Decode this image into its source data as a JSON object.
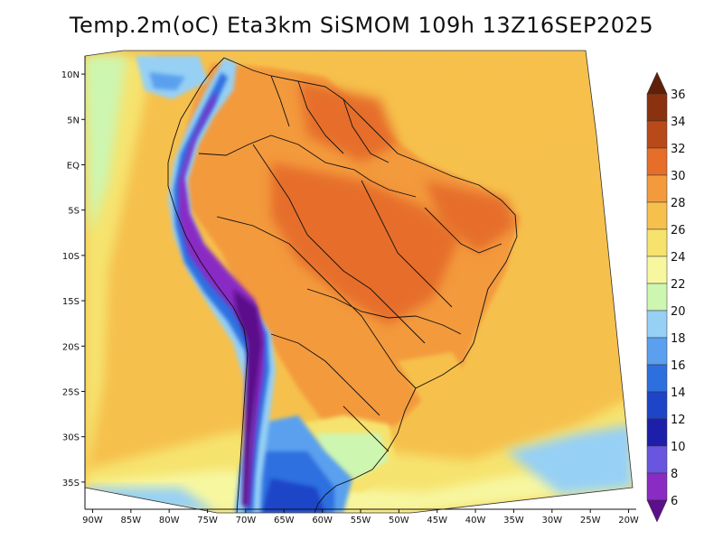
{
  "title": "Temp.2m(oC) Eta3km SiSMOM 109h 13Z16SEP2025",
  "map": {
    "lat_labels": [
      "10N",
      "5N",
      "EQ",
      "5S",
      "10S",
      "15S",
      "20S",
      "25S",
      "30S",
      "35S"
    ],
    "lon_labels": [
      "90W",
      "85W",
      "80W",
      "75W",
      "70W",
      "65W",
      "60W",
      "55W",
      "50W",
      "45W",
      "40W",
      "35W",
      "30W",
      "25W",
      "20W"
    ],
    "lat_values": [
      10,
      5,
      0,
      -5,
      -10,
      -15,
      -20,
      -25,
      -30,
      -35
    ],
    "lon_values": [
      -90,
      -85,
      -80,
      -75,
      -70,
      -65,
      -60,
      -55,
      -50,
      -45,
      -40,
      -35,
      -30,
      -25,
      -20
    ],
    "lat_range": [
      -38,
      12
    ],
    "lon_range": [
      -91,
      -19
    ]
  },
  "colorbar": {
    "labels": [
      "6",
      "8",
      "10",
      "12",
      "14",
      "16",
      "18",
      "20",
      "22",
      "24",
      "26",
      "28",
      "30",
      "32",
      "34",
      "36"
    ],
    "bins": [
      {
        "color": "#5c0f8a"
      },
      {
        "color": "#8a2bc4"
      },
      {
        "color": "#6a55e0"
      },
      {
        "color": "#1d1faa"
      },
      {
        "color": "#1e44c8"
      },
      {
        "color": "#2e6fe0"
      },
      {
        "color": "#5aa0ee"
      },
      {
        "color": "#96d0f5"
      },
      {
        "color": "#cdf6b0"
      },
      {
        "color": "#f7f7a0"
      },
      {
        "color": "#f6e36e"
      },
      {
        "color": "#f6c04c"
      },
      {
        "color": "#f39a3c"
      },
      {
        "color": "#e66e2a"
      },
      {
        "color": "#b84a1a"
      },
      {
        "color": "#8a3210"
      },
      {
        "color": "#5e2008"
      }
    ]
  }
}
